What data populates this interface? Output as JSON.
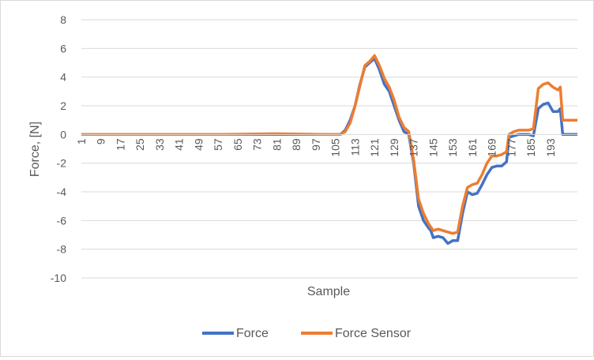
{
  "chart_data": {
    "type": "line",
    "title": "",
    "xlabel": "Sample",
    "ylabel": "Force, [N]",
    "ylim": [
      -10,
      8
    ],
    "ytick_step": 2,
    "x_tick_labels": [
      "1",
      "9",
      "17",
      "25",
      "33",
      "41",
      "49",
      "57",
      "65",
      "73",
      "81",
      "89",
      "97",
      "105",
      "113",
      "121",
      "129",
      "137",
      "145",
      "153",
      "161",
      "169",
      "177",
      "185",
      "193"
    ],
    "x_range": [
      1,
      200
    ],
    "grid": "horizontal",
    "legend_position": "bottom",
    "series": [
      {
        "name": "Force",
        "color": "#4472C4",
        "points": [
          [
            1,
            0
          ],
          [
            60,
            0
          ],
          [
            80,
            0
          ],
          [
            100,
            0
          ],
          [
            107,
            0
          ],
          [
            109,
            0.3
          ],
          [
            111,
            1
          ],
          [
            113,
            2
          ],
          [
            115,
            3.5
          ],
          [
            117,
            4.7
          ],
          [
            119,
            5
          ],
          [
            121,
            5.3
          ],
          [
            123,
            4.5
          ],
          [
            125,
            3.5
          ],
          [
            127,
            3
          ],
          [
            129,
            2
          ],
          [
            131,
            1
          ],
          [
            133,
            0.2
          ],
          [
            135,
            0
          ],
          [
            137,
            -2
          ],
          [
            139,
            -5
          ],
          [
            141,
            -6
          ],
          [
            143,
            -6.5
          ],
          [
            144,
            -6.7
          ],
          [
            145,
            -7.2
          ],
          [
            147,
            -7.1
          ],
          [
            149,
            -7.2
          ],
          [
            151,
            -7.6
          ],
          [
            153,
            -7.4
          ],
          [
            155,
            -7.4
          ],
          [
            157,
            -5.5
          ],
          [
            159,
            -4
          ],
          [
            161,
            -4.2
          ],
          [
            163,
            -4.1
          ],
          [
            165,
            -3.5
          ],
          [
            167,
            -2.8
          ],
          [
            169,
            -2.3
          ],
          [
            171,
            -2.2
          ],
          [
            173,
            -2.2
          ],
          [
            175,
            -1.9
          ],
          [
            176,
            -0.2
          ],
          [
            178,
            -0.1
          ],
          [
            180,
            0
          ],
          [
            184,
            0
          ],
          [
            186,
            -0.1
          ],
          [
            188,
            1.8
          ],
          [
            190,
            2.1
          ],
          [
            192,
            2.2
          ],
          [
            194,
            1.6
          ],
          [
            196,
            1.6
          ],
          [
            197,
            1.8
          ],
          [
            198,
            0
          ],
          [
            200,
            0
          ],
          [
            204,
            0
          ]
        ]
      },
      {
        "name": "Force Sensor",
        "color": "#ED7D31",
        "points": [
          [
            1,
            0
          ],
          [
            60,
            0
          ],
          [
            80,
            0.05
          ],
          [
            100,
            0
          ],
          [
            107,
            0
          ],
          [
            109,
            0.2
          ],
          [
            111,
            0.8
          ],
          [
            113,
            2
          ],
          [
            115,
            3.4
          ],
          [
            117,
            4.8
          ],
          [
            119,
            5.1
          ],
          [
            121,
            5.5
          ],
          [
            123,
            4.8
          ],
          [
            125,
            3.9
          ],
          [
            127,
            3.3
          ],
          [
            129,
            2.4
          ],
          [
            131,
            1.2
          ],
          [
            133,
            0.5
          ],
          [
            135,
            0.2
          ],
          [
            137,
            -1.8
          ],
          [
            139,
            -4.5
          ],
          [
            141,
            -5.5
          ],
          [
            143,
            -6.2
          ],
          [
            145,
            -6.7
          ],
          [
            147,
            -6.6
          ],
          [
            149,
            -6.7
          ],
          [
            151,
            -6.8
          ],
          [
            153,
            -6.9
          ],
          [
            155,
            -6.8
          ],
          [
            157,
            -5
          ],
          [
            159,
            -3.7
          ],
          [
            161,
            -3.5
          ],
          [
            163,
            -3.4
          ],
          [
            165,
            -2.8
          ],
          [
            167,
            -2
          ],
          [
            169,
            -1.5
          ],
          [
            171,
            -1.5
          ],
          [
            173,
            -1.4
          ],
          [
            175,
            -1.2
          ],
          [
            176,
            0
          ],
          [
            178,
            0.2
          ],
          [
            180,
            0.3
          ],
          [
            184,
            0.3
          ],
          [
            186,
            0.4
          ],
          [
            188,
            3.2
          ],
          [
            190,
            3.5
          ],
          [
            192,
            3.6
          ],
          [
            194,
            3.3
          ],
          [
            196,
            3.1
          ],
          [
            197,
            3.3
          ],
          [
            198,
            1
          ],
          [
            200,
            1
          ],
          [
            204,
            1
          ]
        ]
      }
    ]
  }
}
